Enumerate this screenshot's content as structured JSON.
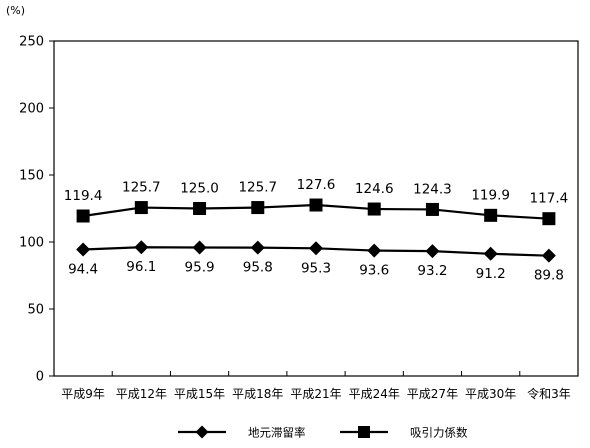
{
  "chart_data": {
    "type": "line",
    "unit_label": "(%)",
    "ylim": [
      0,
      250
    ],
    "yticks": [
      0,
      50,
      100,
      150,
      200,
      250
    ],
    "grid": false,
    "legend_position": "bottom",
    "categories": [
      "平成9年",
      "平成12年",
      "平成15年",
      "平成18年",
      "平成21年",
      "平成24年",
      "平成27年",
      "平成30年",
      "令和3年"
    ],
    "series": [
      {
        "name": "地元滞留率",
        "marker": "diamond",
        "color": "#000000",
        "values": [
          94.4,
          96.1,
          95.9,
          95.8,
          95.3,
          93.6,
          93.2,
          91.2,
          89.8
        ],
        "labels": [
          "94.4",
          "96.1",
          "95.9",
          "95.8",
          "95.3",
          "93.6",
          "93.2",
          "91.2",
          "89.8"
        ]
      },
      {
        "name": "吸引力係数",
        "marker": "square",
        "color": "#000000",
        "values": [
          119.4,
          125.7,
          125.0,
          125.7,
          127.6,
          124.6,
          124.3,
          119.9,
          117.4
        ],
        "labels": [
          "119.4",
          "125.7",
          "125.0",
          "125.7",
          "127.6",
          "124.6",
          "124.3",
          "119.9",
          "117.4"
        ]
      }
    ]
  }
}
